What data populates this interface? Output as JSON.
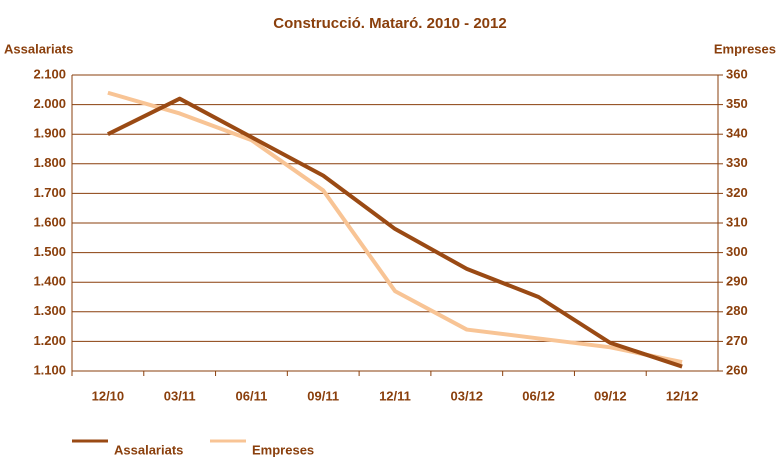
{
  "chart_data": {
    "type": "line",
    "title": "Construcció. Mataró. 2010 - 2012",
    "y_label": "Assalariats",
    "y2_label": "Empreses",
    "categories": [
      "12/10",
      "03/11",
      "06/11",
      "09/11",
      "12/11",
      "03/12",
      "06/12",
      "09/12",
      "12/12"
    ],
    "series": [
      {
        "name": "Assalariats",
        "color": "#9a4a14",
        "values": [
          1900,
          2020,
          1890,
          1760,
          1580,
          1445,
          1350,
          1195,
          1115
        ]
      },
      {
        "name": "Empreses",
        "color": "#f8c495",
        "axis": "y2",
        "values": [
          354,
          347,
          338,
          321,
          287,
          274,
          271,
          268,
          263
        ]
      }
    ],
    "ylim": [
      1100,
      2100
    ],
    "yticks": [
      {
        "value": 1100,
        "label": "1.100"
      },
      {
        "value": 1200,
        "label": "1.200"
      },
      {
        "value": 1300,
        "label": "1.300"
      },
      {
        "value": 1400,
        "label": "1.400"
      },
      {
        "value": 1500,
        "label": "1.500"
      },
      {
        "value": 1600,
        "label": "1.600"
      },
      {
        "value": 1700,
        "label": "1.700"
      },
      {
        "value": 1800,
        "label": "1.800"
      },
      {
        "value": 1900,
        "label": "1.900"
      },
      {
        "value": 2000,
        "label": "2.000"
      },
      {
        "value": 2100,
        "label": "2.100"
      }
    ],
    "y2lim": [
      260,
      360
    ],
    "y2ticks": [
      260,
      270,
      280,
      290,
      300,
      310,
      320,
      330,
      340,
      350,
      360
    ],
    "grid": true,
    "legend": "bottom"
  }
}
